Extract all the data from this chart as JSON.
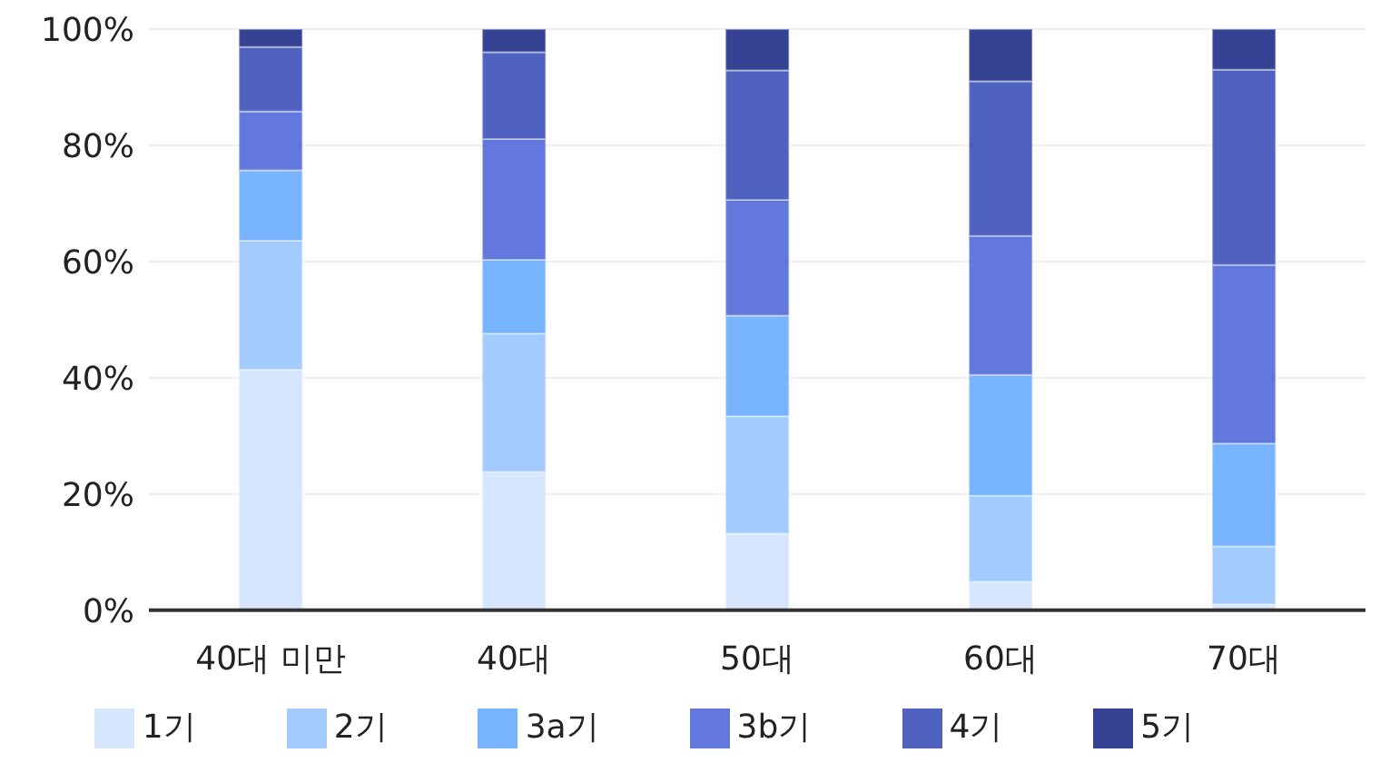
{
  "chart_data": {
    "type": "bar",
    "stacked": true,
    "categories": [
      "40대 미만",
      "40대",
      "50대",
      "60대",
      "70대"
    ],
    "series": [
      {
        "name": "1기",
        "color": "#d6e6fe",
        "values": [
          41.4,
          23.8,
          13.2,
          4.9,
          1.0
        ]
      },
      {
        "name": "2기",
        "color": "#a3cbfd",
        "values": [
          22.2,
          23.8,
          20.2,
          14.8,
          10.0
        ]
      },
      {
        "name": "3a기",
        "color": "#78b3fd",
        "values": [
          12.1,
          12.7,
          17.3,
          20.8,
          17.7
        ]
      },
      {
        "name": "3b기",
        "color": "#6278dc",
        "values": [
          10.1,
          20.8,
          19.9,
          23.9,
          30.7
        ]
      },
      {
        "name": "4기",
        "color": "#4f62bf",
        "values": [
          11.1,
          14.9,
          22.3,
          26.6,
          33.6
        ]
      },
      {
        "name": "5기",
        "color": "#364394",
        "values": [
          3.1,
          4.0,
          7.1,
          9.0,
          7.0
        ]
      }
    ],
    "ylim": [
      0,
      100
    ],
    "yticks": [
      {
        "value": 0,
        "label": "0%"
      },
      {
        "value": 20,
        "label": "20%"
      },
      {
        "value": 40,
        "label": "40%"
      },
      {
        "value": 60,
        "label": "60%"
      },
      {
        "value": 80,
        "label": "80%"
      },
      {
        "value": 100,
        "label": "100%"
      }
    ],
    "grid": "y",
    "legend": "bottom"
  }
}
